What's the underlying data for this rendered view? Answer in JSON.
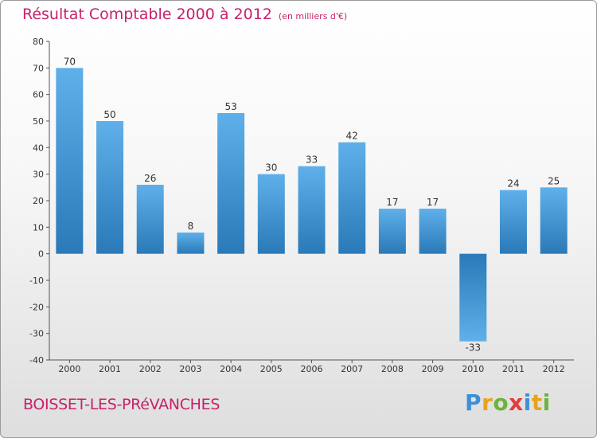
{
  "title": "Résultat Comptable 2000 à 2012",
  "subtitle": "(en milliers d'€)",
  "city": "BOISSET-LES-PRéVANCHES",
  "brand": {
    "letters": [
      "P",
      "r",
      "o",
      "x",
      "i",
      "t",
      "i"
    ],
    "colors": [
      "#3d8fd6",
      "#e8a21c",
      "#6cb33f",
      "#e23b3b",
      "#3d8fd6",
      "#e8a21c",
      "#6cb33f"
    ]
  },
  "colors": {
    "bar_top": "#5fb0ea",
    "bar_bottom": "#2a79b8",
    "accent": "#c8216b"
  },
  "chart_data": {
    "type": "bar",
    "title": "Résultat Comptable 2000 à 2012",
    "xlabel": "",
    "ylabel": "",
    "categories": [
      "2000",
      "2001",
      "2002",
      "2003",
      "2004",
      "2005",
      "2006",
      "2007",
      "2008",
      "2009",
      "2010",
      "2011",
      "2012"
    ],
    "values": [
      70,
      50,
      26,
      8,
      53,
      30,
      33,
      42,
      17,
      17,
      -33,
      24,
      25
    ],
    "ylim": [
      -40,
      80
    ],
    "yticks": [
      80,
      70,
      60,
      50,
      40,
      30,
      20,
      10,
      0,
      -10,
      -20,
      -30,
      -40
    ],
    "grid": false,
    "legend": "none"
  }
}
